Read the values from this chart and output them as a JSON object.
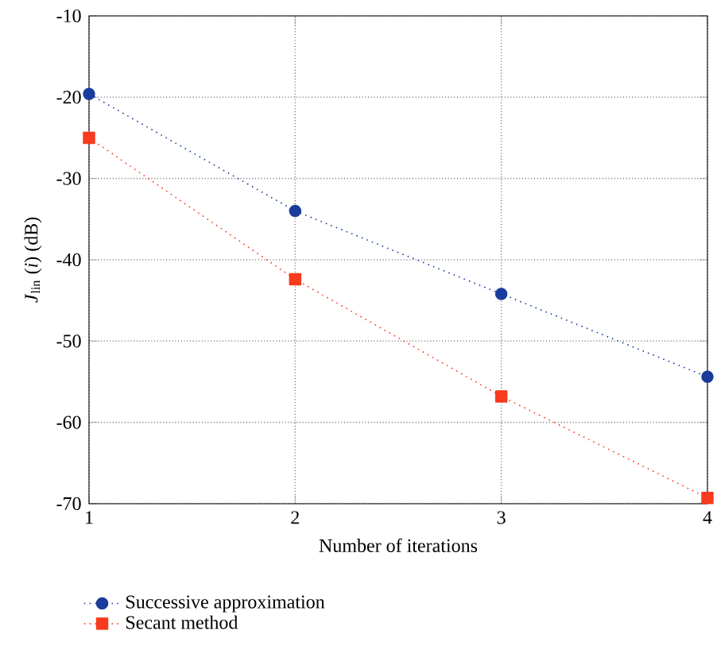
{
  "chart_data": {
    "type": "line",
    "xlabel": "Number of iterations",
    "ylabel": "*J*$_{lin}$ (*i*) (dB)",
    "x": [
      1,
      2,
      3,
      4
    ],
    "xlim": [
      1,
      4
    ],
    "xticks": [
      1,
      2,
      3,
      4
    ],
    "ylim": [
      -70,
      -10
    ],
    "yticks": [
      -70,
      -60,
      -50,
      -40,
      -30,
      -20,
      -10
    ],
    "grid": true,
    "legend": "bottom",
    "line_style": "dotted",
    "series": [
      {
        "name": "Successive approximation",
        "color": "#1a3c9c",
        "marker": "circle",
        "values": [
          -19.6,
          -34.0,
          -44.2,
          -54.4
        ]
      },
      {
        "name": "Secant method",
        "color": "#f83a1e",
        "marker": "square",
        "values": [
          -25.0,
          -42.4,
          -56.8,
          -69.3
        ]
      }
    ]
  }
}
